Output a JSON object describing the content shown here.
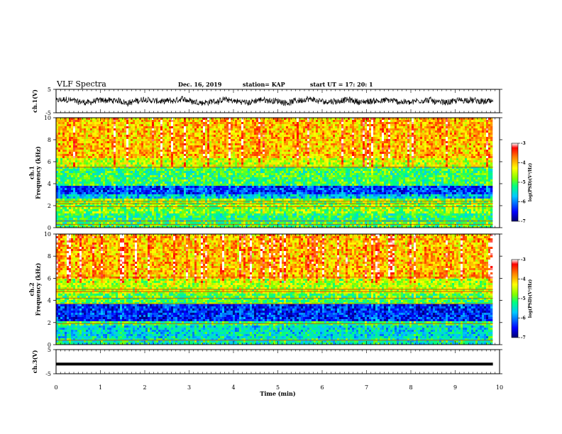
{
  "header": {
    "title": "VLF Spectra",
    "date": "Dec. 16, 2019",
    "station": "station= KAP",
    "start_time": "start  UT =   17: 20: 1"
  },
  "chart_data": [
    {
      "type": "line",
      "ylabel": "ch.1(V)",
      "ylim": [
        -5,
        5
      ],
      "y_ticks": [
        "5",
        "-5"
      ],
      "xlim": [
        0,
        10
      ],
      "series_description": "noisy waveform around 0 V"
    },
    {
      "type": "heatmap",
      "ylabel": "ch.1\nFrequency (kHz)",
      "ylim": [
        0,
        10
      ],
      "y_ticks": [
        "0",
        "2",
        "4",
        "6",
        "8",
        "10"
      ],
      "xlim": [
        0,
        10
      ],
      "colorbar": {
        "label": "log(PSD)(V²/Hz)",
        "ticks": [
          "-3",
          "-4",
          "-5",
          "-6",
          "-7"
        ],
        "range": [
          -7,
          -3
        ]
      },
      "bands": [
        {
          "from": 0.0,
          "to": 0.5,
          "level": -5.0
        },
        {
          "from": 0.5,
          "to": 1.3,
          "level": -5.2
        },
        {
          "from": 1.3,
          "to": 2.6,
          "level": -4.8
        },
        {
          "from": 2.6,
          "to": 3.0,
          "level": -5.7
        },
        {
          "from": 3.0,
          "to": 3.8,
          "level": -6.3
        },
        {
          "from": 3.8,
          "to": 5.6,
          "level": -5.1
        },
        {
          "from": 5.6,
          "to": 6.3,
          "level": -4.5
        },
        {
          "from": 6.3,
          "to": 10.0,
          "level": -4.0
        }
      ],
      "lines_khz": [
        0.3,
        0.6,
        1.9,
        2.2,
        2.4,
        5.5
      ]
    },
    {
      "type": "heatmap",
      "ylabel": "ch.2\nFrequency (kHz)",
      "ylim": [
        0,
        10
      ],
      "y_ticks": [
        "0",
        "2",
        "4",
        "6",
        "8",
        "10"
      ],
      "xlim": [
        0,
        10
      ],
      "colorbar": {
        "label": "log(PSD)(V²/Hz)",
        "ticks": [
          "-3",
          "-4",
          "-5",
          "-6",
          "-7"
        ],
        "range": [
          -7,
          -3
        ]
      },
      "bands": [
        {
          "from": 0.0,
          "to": 0.6,
          "level": -5.4
        },
        {
          "from": 0.6,
          "to": 1.8,
          "level": -5.6
        },
        {
          "from": 1.8,
          "to": 2.2,
          "level": -5.2
        },
        {
          "from": 2.2,
          "to": 3.6,
          "level": -6.4
        },
        {
          "from": 3.6,
          "to": 4.6,
          "level": -5.0
        },
        {
          "from": 4.6,
          "to": 6.0,
          "level": -4.6
        },
        {
          "from": 6.0,
          "to": 10.0,
          "level": -4.0
        }
      ],
      "lines_khz": [
        0.4,
        1.9,
        3.7,
        4.2,
        4.8,
        5.0,
        6.1
      ]
    },
    {
      "type": "line",
      "ylabel": "ch.3(V)",
      "ylim": [
        -5,
        5
      ],
      "y_ticks": [
        "5",
        "-5"
      ],
      "xlim": [
        0,
        10
      ],
      "series_description": "constant thick line near -1 V",
      "value": -1
    }
  ],
  "x_axis": {
    "label": "Time  (min)",
    "ticks": [
      "0",
      "1",
      "2",
      "3",
      "4",
      "5",
      "6",
      "7",
      "8",
      "9",
      "10"
    ],
    "range": [
      0,
      10
    ]
  },
  "colors": {
    "colormap": [
      "#00007a",
      "#0000ff",
      "#00c8ff",
      "#00ff80",
      "#80ff00",
      "#ffff00",
      "#ff8000",
      "#ff0000",
      "#ffffff"
    ]
  }
}
